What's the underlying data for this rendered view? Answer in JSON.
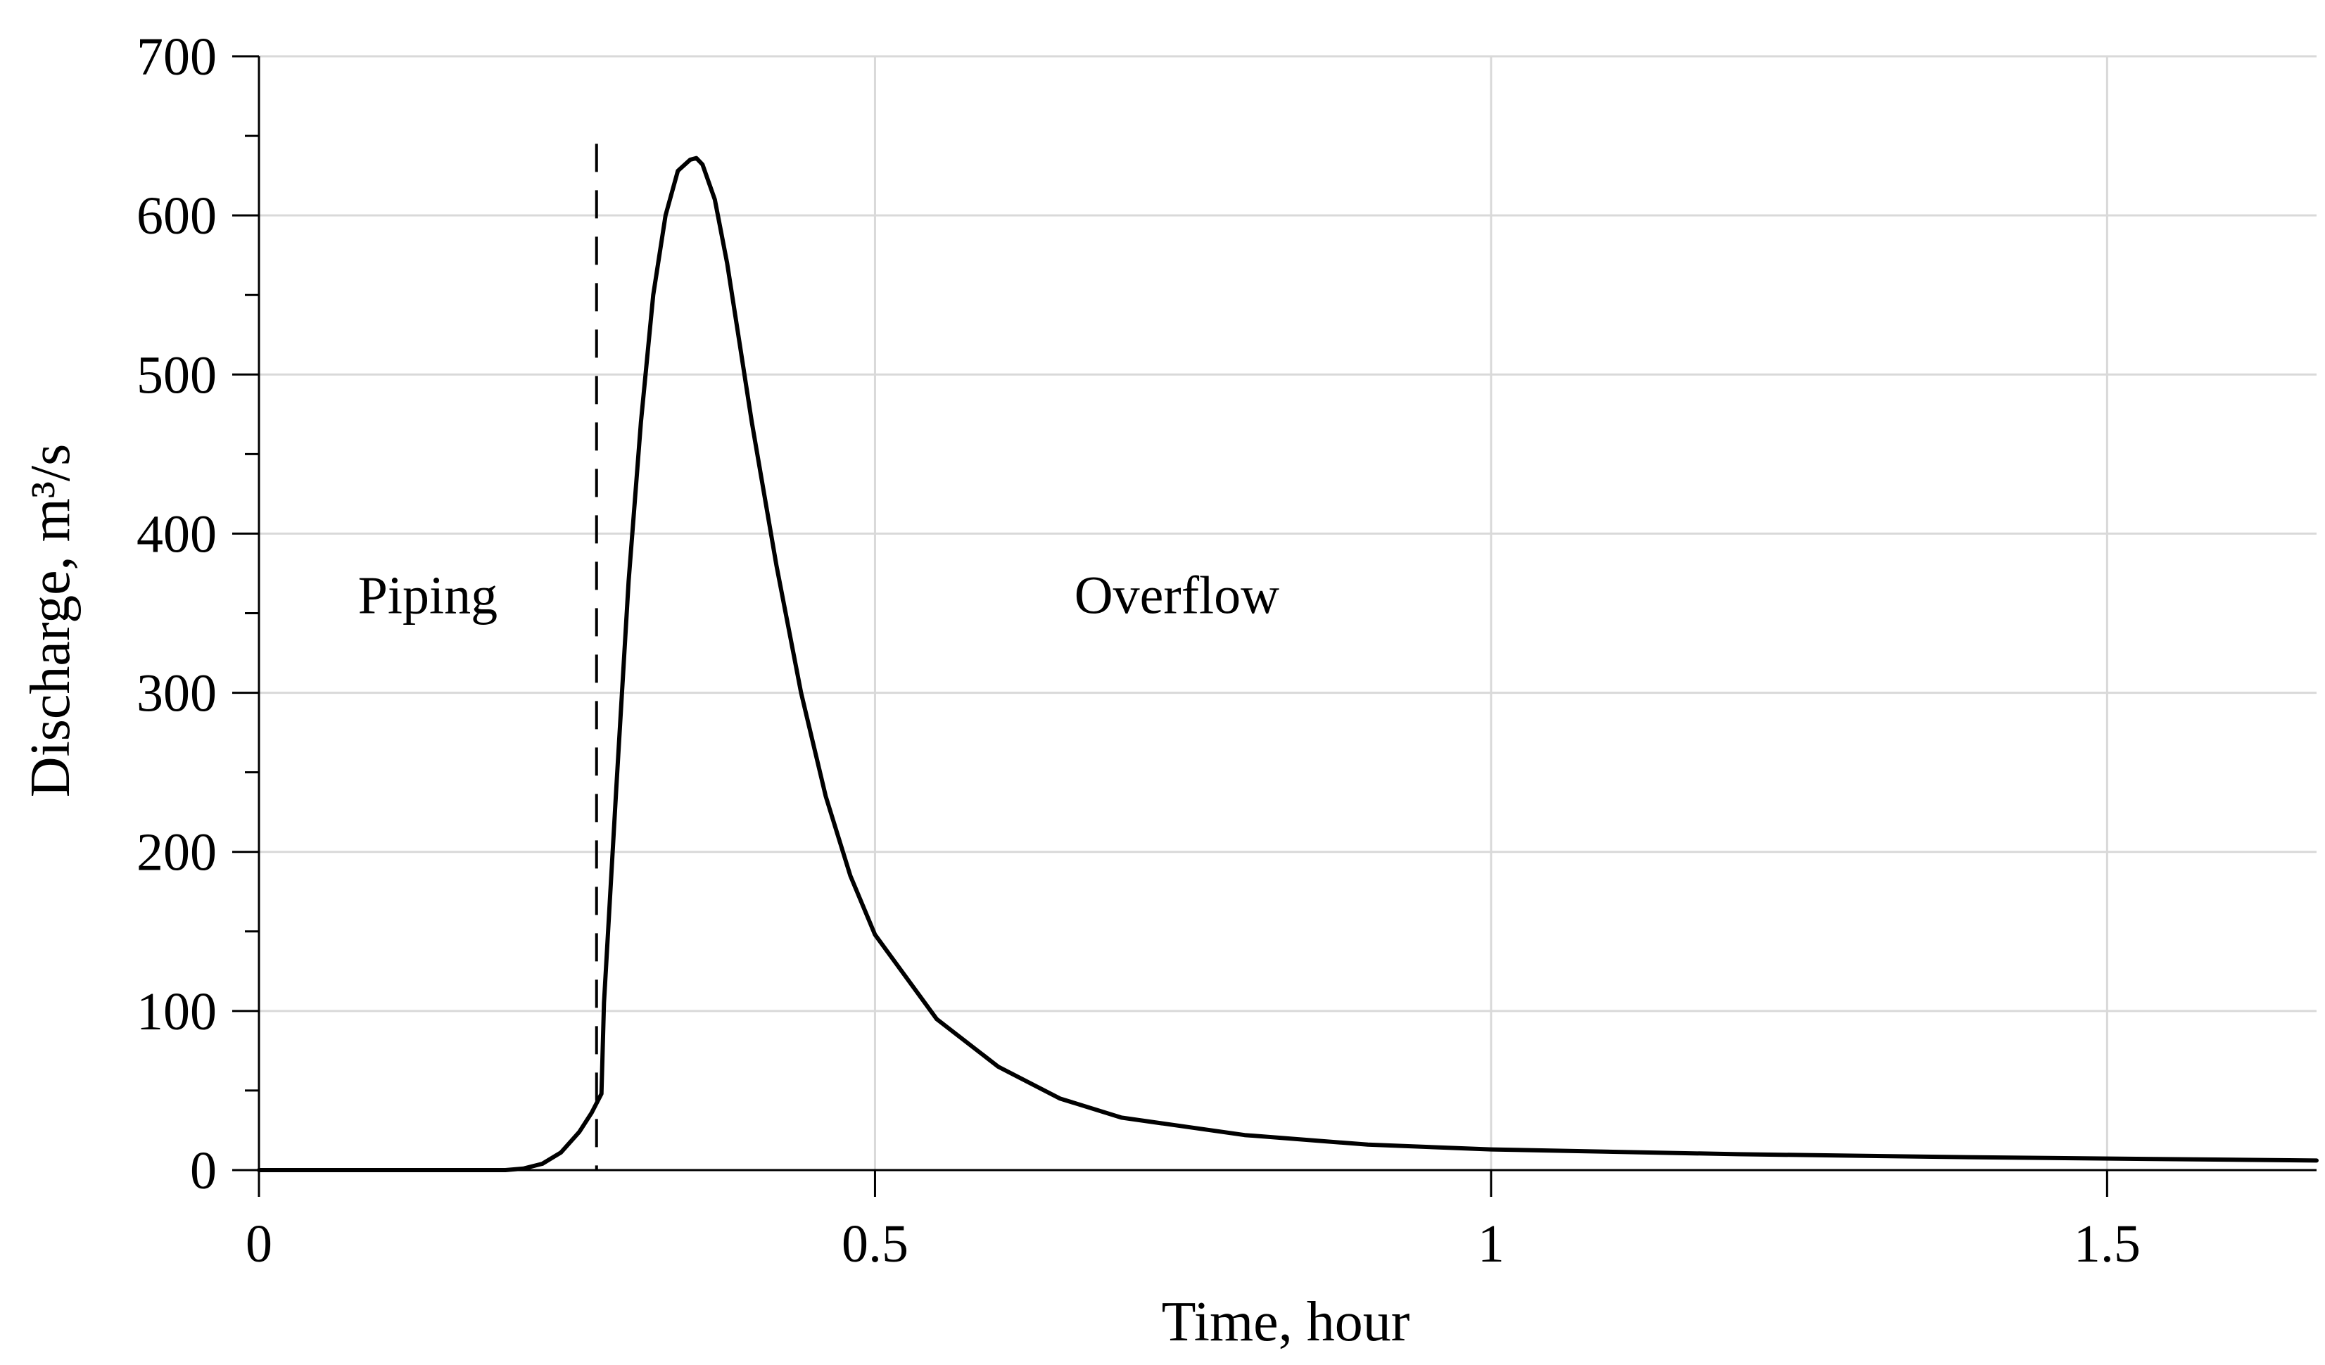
{
  "chart_data": {
    "type": "line",
    "title": "",
    "xlabel": "Time, hour",
    "ylabel": "Discharge, m³/s",
    "xlim": [
      0,
      1.67
    ],
    "ylim": [
      0,
      700
    ],
    "x_ticks": [
      0,
      0.5,
      1,
      1.5
    ],
    "x_tick_labels": [
      "0",
      "0.5",
      "1",
      "1.5"
    ],
    "y_ticks": [
      0,
      100,
      200,
      300,
      400,
      500,
      600,
      700
    ],
    "y_tick_labels": [
      "0",
      "100",
      "200",
      "300",
      "400",
      "500",
      "600",
      "700"
    ],
    "grid": true,
    "legend": "none",
    "colors": {
      "line": "#000000",
      "grid": "#d9d9d9",
      "axis": "#000000"
    },
    "divider": {
      "x": 0.274,
      "y_top": 645,
      "style": "dashed"
    },
    "annotations": [
      {
        "text": "Piping",
        "x": 0.137,
        "y": 350
      },
      {
        "text": "Overflow",
        "x": 0.745,
        "y": 350
      }
    ],
    "series": [
      {
        "x": [
          0,
          0.1,
          0.2,
          0.215,
          0.23,
          0.245,
          0.26,
          0.27,
          0.278,
          0.28,
          0.29,
          0.3,
          0.31,
          0.32,
          0.33,
          0.34,
          0.35,
          0.355,
          0.36,
          0.37,
          0.38,
          0.39,
          0.4,
          0.42,
          0.44,
          0.46,
          0.48,
          0.5,
          0.55,
          0.6,
          0.65,
          0.7,
          0.8,
          0.9,
          1.0,
          1.2,
          1.4,
          1.67
        ],
        "values": [
          0,
          0,
          0,
          1,
          4,
          11,
          24,
          36,
          48,
          105,
          240,
          370,
          470,
          550,
          600,
          628,
          635,
          636,
          632,
          610,
          570,
          520,
          470,
          380,
          300,
          235,
          185,
          148,
          95,
          65,
          45,
          33,
          22,
          16,
          13,
          10,
          8,
          6
        ]
      }
    ]
  }
}
